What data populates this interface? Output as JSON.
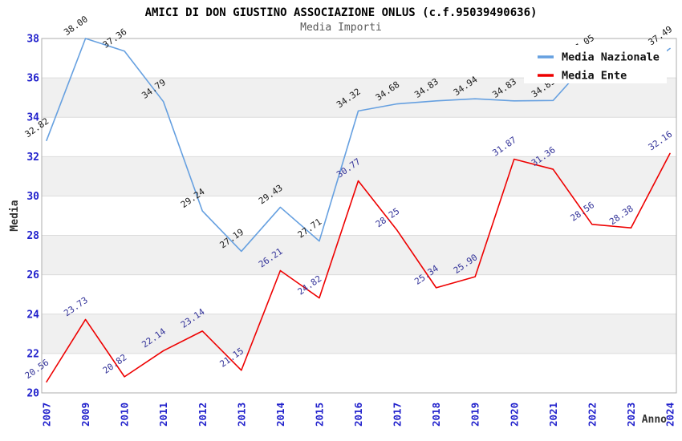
{
  "chart_data": {
    "type": "line",
    "title": "AMICI DI DON GIUSTINO ASSOCIAZIONE ONLUS (c.f.95039490636)",
    "subtitle": "Media Importi",
    "xlabel": "Anno",
    "ylabel": "Media",
    "categories": [
      "2007",
      "2009",
      "2010",
      "2011",
      "2012",
      "2013",
      "2014",
      "2015",
      "2016",
      "2017",
      "2018",
      "2019",
      "2020",
      "2021",
      "2022",
      "2023",
      "2024"
    ],
    "ylim": [
      20,
      38
    ],
    "yticks": [
      20,
      22,
      24,
      26,
      28,
      30,
      32,
      34,
      36,
      38
    ],
    "grid": true,
    "alternating_bands": true,
    "legend_position": "top-right",
    "series": [
      {
        "name": "Media Nazionale",
        "color": "#66A0E0",
        "label_color": "#1A1A1A",
        "values": [
          32.82,
          38.0,
          37.36,
          34.79,
          29.24,
          27.19,
          29.43,
          27.71,
          34.32,
          34.68,
          34.83,
          34.94,
          34.83,
          34.85,
          37.05,
          36.05,
          37.49
        ],
        "labels": [
          "32.82",
          "38.00",
          "37.36",
          "34.79",
          "29.24",
          "27.19",
          "29.43",
          "27.71",
          "34.32",
          "34.68",
          "34.83",
          "34.94",
          "34.83",
          "34.85",
          "37.05",
          "",
          "37.49"
        ]
      },
      {
        "name": "Media Ente",
        "color": "#EE0000",
        "label_color": "#333399",
        "values": [
          20.56,
          23.73,
          20.82,
          22.14,
          23.14,
          21.15,
          26.21,
          24.82,
          30.77,
          28.25,
          25.34,
          25.9,
          31.87,
          31.36,
          28.56,
          28.38,
          32.16
        ],
        "labels": [
          "20.56",
          "23.73",
          "20.82",
          "22.14",
          "23.14",
          "21.15",
          "26.21",
          "24.82",
          "30.77",
          "28.25",
          "25.34",
          "25.90",
          "31.87",
          "31.36",
          "28.56",
          "28.38",
          "32.16"
        ]
      }
    ],
    "colors": {
      "title": "#000000",
      "subtitle": "#595959",
      "tick_labels": "#2222CC",
      "axis_titles": "#333333",
      "band": "#F0F0F0",
      "grid": "#DCDCDC",
      "plot_border": "#ADADAD",
      "background": "#FFFFFF",
      "legend_background": "#FFFFFF",
      "legend_text": "#111111"
    }
  }
}
